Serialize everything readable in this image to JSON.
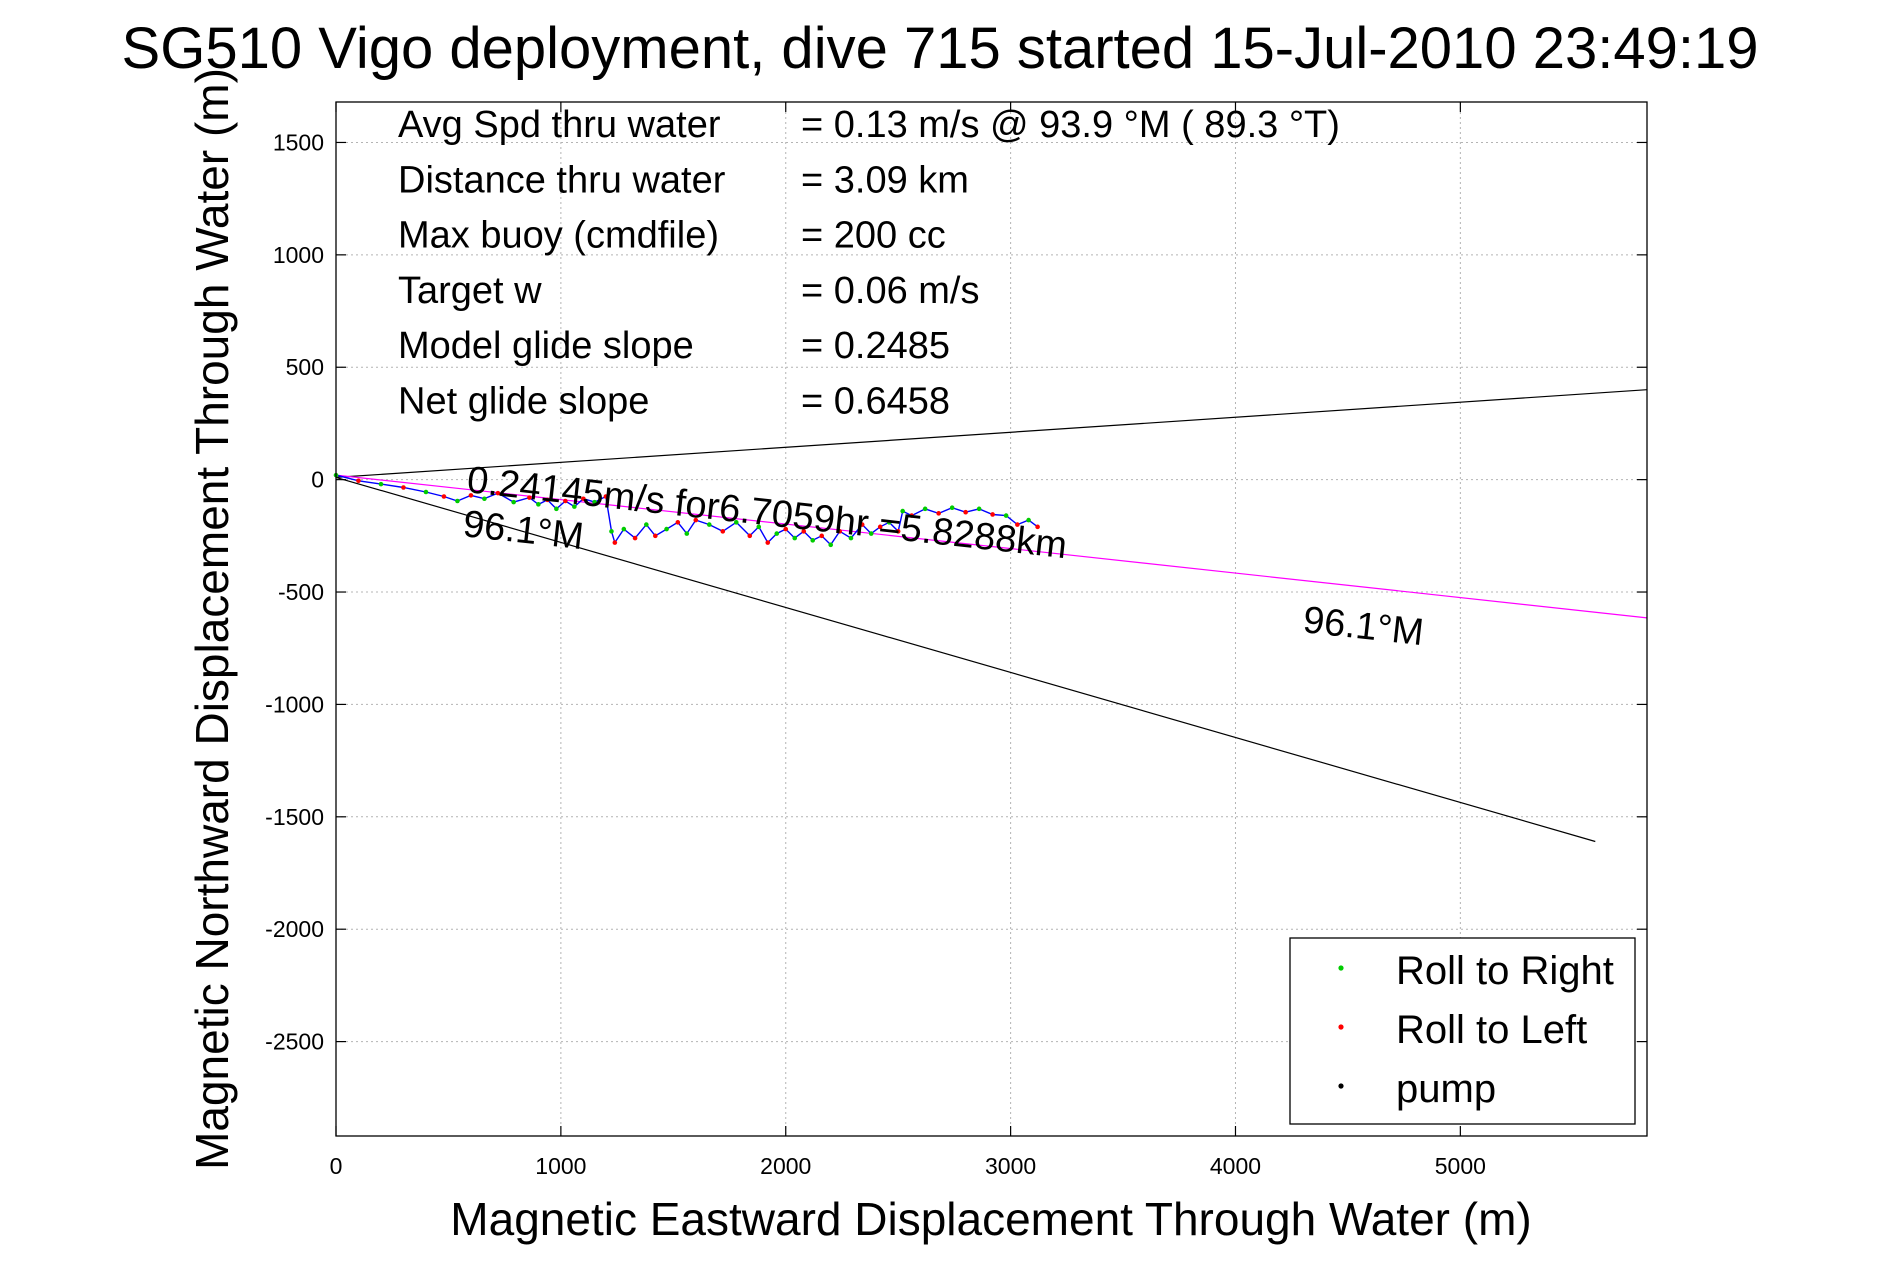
{
  "chart_data": {
    "type": "line",
    "title": "SG510 Vigo deployment, dive 715 started 15-Jul-2010 23:49:19",
    "xlabel": "Magnetic Eastward Displacement Through Water (m)",
    "ylabel": "Magnetic Northward Displacement Through Water (m)",
    "xlim": [
      0,
      5830
    ],
    "ylim": [
      -2920,
      1680
    ],
    "xticks": [
      0,
      1000,
      2000,
      3000,
      4000,
      5000
    ],
    "yticks": [
      1500,
      1000,
      500,
      0,
      -500,
      -1000,
      -1500,
      -2000,
      -2500
    ],
    "grid": true,
    "legend_position": "bottom-right",
    "legend": [
      {
        "label": "Roll to Right",
        "color": "#00cc00"
      },
      {
        "label": "Roll to Left",
        "color": "#ff0000"
      },
      {
        "label": "pump",
        "color": "#000000"
      }
    ],
    "info_lines": [
      {
        "label": "Avg Spd thru water",
        "value": "=  0.13 m/s @  93.9 °M ( 89.3 °T)"
      },
      {
        "label": "Distance thru water",
        "value": "=  3.09 km"
      },
      {
        "label": "Max buoy (cmdfile)",
        "value": "= 200 cc"
      },
      {
        "label": "Target w",
        "value": "= 0.06 m/s"
      },
      {
        "label": "Model glide slope",
        "value": "= 0.2485"
      },
      {
        "label": "Net glide slope",
        "value": "= 0.6458"
      }
    ],
    "annotations": {
      "current_text": "0.24145m/s for6.7059hr =5.8288km",
      "heading_label_1": "96.1°M",
      "heading_label_2": "96.1°M"
    },
    "series": [
      {
        "style": "reference-line",
        "color": "#000000",
        "x": [
          0,
          5830
        ],
        "y": [
          10,
          400
        ]
      },
      {
        "style": "reference-line",
        "color": "#000000",
        "x": [
          0,
          5600
        ],
        "y": [
          10,
          -1610
        ]
      },
      {
        "style": "current-line",
        "color": "#ff00ff",
        "x": [
          0,
          5830
        ],
        "y": [
          20,
          -615
        ]
      },
      {
        "style": "track",
        "color": "#0000ff",
        "x": [
          0,
          100,
          200,
          300,
          400,
          480,
          540,
          600,
          660,
          720,
          790,
          860,
          900,
          940,
          980,
          1020,
          1060,
          1100,
          1150,
          1200,
          1225,
          1240,
          1280,
          1330,
          1380,
          1420,
          1470,
          1520,
          1560,
          1600,
          1660,
          1720,
          1780,
          1840,
          1880,
          1920,
          1960,
          2000,
          2040,
          2080,
          2120,
          2160,
          2200,
          2240,
          2290,
          2340,
          2380,
          2420,
          2460,
          2500,
          2520,
          2560,
          2620,
          2680,
          2740,
          2800,
          2860,
          2920,
          2980,
          3030,
          3080,
          3120
        ],
        "y": [
          20,
          -5,
          -20,
          -35,
          -55,
          -75,
          -95,
          -70,
          -85,
          -60,
          -100,
          -80,
          -110,
          -90,
          -130,
          -95,
          -120,
          -85,
          -100,
          -75,
          -230,
          -280,
          -220,
          -260,
          -200,
          -250,
          -220,
          -190,
          -240,
          -180,
          -200,
          -230,
          -190,
          -250,
          -210,
          -280,
          -240,
          -220,
          -260,
          -230,
          -270,
          -250,
          -290,
          -230,
          -260,
          -200,
          -240,
          -210,
          -190,
          -230,
          -140,
          -160,
          -130,
          -150,
          -125,
          -145,
          -130,
          -155,
          -160,
          -200,
          -180,
          -210
        ]
      }
    ]
  }
}
